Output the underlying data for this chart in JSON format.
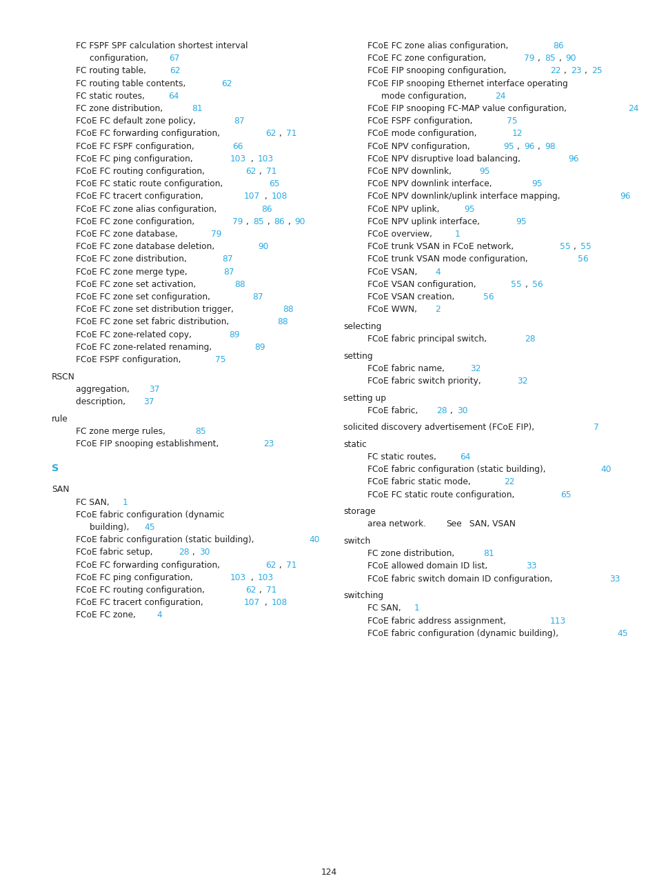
{
  "page_number": "124",
  "text_color": "#231f20",
  "link_color": "#29abe2",
  "background_color": "#ffffff",
  "left_entries": [
    {
      "indent": 1,
      "parts": [
        [
          "FC FSPF SPF calculation shortest interval",
          false
        ]
      ]
    },
    {
      "indent": 2,
      "parts": [
        [
          "configuration, ",
          false
        ],
        [
          "67",
          true
        ]
      ]
    },
    {
      "indent": 1,
      "parts": [
        [
          "FC routing table, ",
          false
        ],
        [
          "62",
          true
        ]
      ]
    },
    {
      "indent": 1,
      "parts": [
        [
          "FC routing table contents, ",
          false
        ],
        [
          "62",
          true
        ]
      ]
    },
    {
      "indent": 1,
      "parts": [
        [
          "FC static routes, ",
          false
        ],
        [
          "64",
          true
        ]
      ]
    },
    {
      "indent": 1,
      "parts": [
        [
          "FC zone distribution, ",
          false
        ],
        [
          "81",
          true
        ]
      ]
    },
    {
      "indent": 1,
      "parts": [
        [
          "FCoE FC default zone policy, ",
          false
        ],
        [
          "87",
          true
        ]
      ]
    },
    {
      "indent": 1,
      "parts": [
        [
          "FCoE FC forwarding configuration, ",
          false
        ],
        [
          "62",
          true
        ],
        [
          ", ",
          false
        ],
        [
          "71",
          true
        ]
      ]
    },
    {
      "indent": 1,
      "parts": [
        [
          "FCoE FC FSPF configuration, ",
          false
        ],
        [
          "66",
          true
        ]
      ]
    },
    {
      "indent": 1,
      "parts": [
        [
          "FCoE FC ping configuration, ",
          false
        ],
        [
          "103",
          true
        ],
        [
          ", ",
          false
        ],
        [
          "103",
          true
        ]
      ]
    },
    {
      "indent": 1,
      "parts": [
        [
          "FCoE FC routing configuration, ",
          false
        ],
        [
          "62",
          true
        ],
        [
          ", ",
          false
        ],
        [
          "71",
          true
        ]
      ]
    },
    {
      "indent": 1,
      "parts": [
        [
          "FCoE FC static route configuration, ",
          false
        ],
        [
          "65",
          true
        ]
      ]
    },
    {
      "indent": 1,
      "parts": [
        [
          "FCoE FC tracert configuration, ",
          false
        ],
        [
          "107",
          true
        ],
        [
          ", ",
          false
        ],
        [
          "108",
          true
        ]
      ]
    },
    {
      "indent": 1,
      "parts": [
        [
          "FCoE FC zone alias configuration, ",
          false
        ],
        [
          "86",
          true
        ]
      ]
    },
    {
      "indent": 1,
      "parts": [
        [
          "FCoE FC zone configuration, ",
          false
        ],
        [
          "79",
          true
        ],
        [
          ", ",
          false
        ],
        [
          "85",
          true
        ],
        [
          ", ",
          false
        ],
        [
          "86",
          true
        ],
        [
          ", ",
          false
        ],
        [
          "90",
          true
        ]
      ]
    },
    {
      "indent": 1,
      "parts": [
        [
          "FCoE FC zone database, ",
          false
        ],
        [
          "79",
          true
        ]
      ]
    },
    {
      "indent": 1,
      "parts": [
        [
          "FCoE FC zone database deletion, ",
          false
        ],
        [
          "90",
          true
        ]
      ]
    },
    {
      "indent": 1,
      "parts": [
        [
          "FCoE FC zone distribution, ",
          false
        ],
        [
          "87",
          true
        ]
      ]
    },
    {
      "indent": 1,
      "parts": [
        [
          "FCoE FC zone merge type, ",
          false
        ],
        [
          "87",
          true
        ]
      ]
    },
    {
      "indent": 1,
      "parts": [
        [
          "FCoE FC zone set activation, ",
          false
        ],
        [
          "88",
          true
        ]
      ]
    },
    {
      "indent": 1,
      "parts": [
        [
          "FCoE FC zone set configuration, ",
          false
        ],
        [
          "87",
          true
        ]
      ]
    },
    {
      "indent": 1,
      "parts": [
        [
          "FCoE FC zone set distribution trigger, ",
          false
        ],
        [
          "88",
          true
        ]
      ]
    },
    {
      "indent": 1,
      "parts": [
        [
          "FCoE FC zone set fabric distribution, ",
          false
        ],
        [
          "88",
          true
        ]
      ]
    },
    {
      "indent": 1,
      "parts": [
        [
          "FCoE FC zone-related copy, ",
          false
        ],
        [
          "89",
          true
        ]
      ]
    },
    {
      "indent": 1,
      "parts": [
        [
          "FCoE FC zone-related renaming, ",
          false
        ],
        [
          "89",
          true
        ]
      ]
    },
    {
      "indent": 1,
      "parts": [
        [
          "FCoE FSPF configuration, ",
          false
        ],
        [
          "75",
          true
        ]
      ]
    },
    {
      "indent": 0,
      "parts": [
        [
          "RSCN",
          false
        ]
      ]
    },
    {
      "indent": 1,
      "parts": [
        [
          "aggregation, ",
          false
        ],
        [
          "37",
          true
        ]
      ]
    },
    {
      "indent": 1,
      "parts": [
        [
          "description, ",
          false
        ],
        [
          "37",
          true
        ]
      ]
    },
    {
      "indent": 0,
      "parts": [
        [
          "rule",
          false
        ]
      ]
    },
    {
      "indent": 1,
      "parts": [
        [
          "FC zone merge rules, ",
          false
        ],
        [
          "85",
          true
        ]
      ]
    },
    {
      "indent": 1,
      "parts": [
        [
          "FCoE FIP snooping establishment, ",
          false
        ],
        [
          "23",
          true
        ]
      ]
    },
    {
      "indent": -1,
      "parts": []
    },
    {
      "indent": -2,
      "parts": [
        [
          "S",
          true
        ]
      ]
    },
    {
      "indent": 0,
      "parts": [
        [
          "SAN",
          false
        ]
      ]
    },
    {
      "indent": 1,
      "parts": [
        [
          "FC SAN, ",
          false
        ],
        [
          "1",
          true
        ]
      ]
    },
    {
      "indent": 1,
      "parts": [
        [
          "FCoE fabric configuration (dynamic",
          false
        ]
      ]
    },
    {
      "indent": 2,
      "parts": [
        [
          "building), ",
          false
        ],
        [
          "45",
          true
        ]
      ]
    },
    {
      "indent": 1,
      "parts": [
        [
          "FCoE fabric configuration (static building), ",
          false
        ],
        [
          "40",
          true
        ]
      ]
    },
    {
      "indent": 1,
      "parts": [
        [
          "FCoE fabric setup, ",
          false
        ],
        [
          "28",
          true
        ],
        [
          ", ",
          false
        ],
        [
          "30",
          true
        ]
      ]
    },
    {
      "indent": 1,
      "parts": [
        [
          "FCoE FC forwarding configuration, ",
          false
        ],
        [
          "62",
          true
        ],
        [
          ", ",
          false
        ],
        [
          "71",
          true
        ]
      ]
    },
    {
      "indent": 1,
      "parts": [
        [
          "FCoE FC ping configuration, ",
          false
        ],
        [
          "103",
          true
        ],
        [
          ", ",
          false
        ],
        [
          "103",
          true
        ]
      ]
    },
    {
      "indent": 1,
      "parts": [
        [
          "FCoE FC routing configuration, ",
          false
        ],
        [
          "62",
          true
        ],
        [
          ", ",
          false
        ],
        [
          "71",
          true
        ]
      ]
    },
    {
      "indent": 1,
      "parts": [
        [
          "FCoE FC tracert configuration, ",
          false
        ],
        [
          "107",
          true
        ],
        [
          ", ",
          false
        ],
        [
          "108",
          true
        ]
      ]
    },
    {
      "indent": 1,
      "parts": [
        [
          "FCoE FC zone, ",
          false
        ],
        [
          "4",
          true
        ]
      ]
    }
  ],
  "right_entries": [
    {
      "indent": 1,
      "parts": [
        [
          "FCoE FC zone alias configuration, ",
          false
        ],
        [
          "86",
          true
        ]
      ]
    },
    {
      "indent": 1,
      "parts": [
        [
          "FCoE FC zone configuration, ",
          false
        ],
        [
          "79",
          true
        ],
        [
          ", ",
          false
        ],
        [
          "85",
          true
        ],
        [
          ", ",
          false
        ],
        [
          "90",
          true
        ]
      ]
    },
    {
      "indent": 1,
      "parts": [
        [
          "FCoE FIP snooping configuration, ",
          false
        ],
        [
          "22",
          true
        ],
        [
          ", ",
          false
        ],
        [
          "23",
          true
        ],
        [
          ", ",
          false
        ],
        [
          "25",
          true
        ]
      ]
    },
    {
      "indent": 1,
      "parts": [
        [
          "FCoE FIP snooping Ethernet interface operating",
          false
        ]
      ]
    },
    {
      "indent": 2,
      "parts": [
        [
          "mode configuration, ",
          false
        ],
        [
          "24",
          true
        ]
      ]
    },
    {
      "indent": 1,
      "parts": [
        [
          "FCoE FIP snooping FC-MAP value configuration, ",
          false
        ],
        [
          "24",
          true
        ]
      ]
    },
    {
      "indent": 1,
      "parts": [
        [
          "FCoE FSPF configuration, ",
          false
        ],
        [
          "75",
          true
        ]
      ]
    },
    {
      "indent": 1,
      "parts": [
        [
          "FCoE mode configuration, ",
          false
        ],
        [
          "12",
          true
        ]
      ]
    },
    {
      "indent": 1,
      "parts": [
        [
          "FCoE NPV configuration, ",
          false
        ],
        [
          "95",
          true
        ],
        [
          ", ",
          false
        ],
        [
          "96",
          true
        ],
        [
          ", ",
          false
        ],
        [
          "98",
          true
        ]
      ]
    },
    {
      "indent": 1,
      "parts": [
        [
          "FCoE NPV disruptive load balancing, ",
          false
        ],
        [
          "96",
          true
        ]
      ]
    },
    {
      "indent": 1,
      "parts": [
        [
          "FCoE NPV downlink, ",
          false
        ],
        [
          "95",
          true
        ]
      ]
    },
    {
      "indent": 1,
      "parts": [
        [
          "FCoE NPV downlink interface, ",
          false
        ],
        [
          "95",
          true
        ]
      ]
    },
    {
      "indent": 1,
      "parts": [
        [
          "FCoE NPV downlink/uplink interface mapping, ",
          false
        ],
        [
          "96",
          true
        ]
      ]
    },
    {
      "indent": 1,
      "parts": [
        [
          "FCoE NPV uplink, ",
          false
        ],
        [
          "95",
          true
        ]
      ]
    },
    {
      "indent": 1,
      "parts": [
        [
          "FCoE NPV uplink interface, ",
          false
        ],
        [
          "95",
          true
        ]
      ]
    },
    {
      "indent": 1,
      "parts": [
        [
          "FCoE overview, ",
          false
        ],
        [
          "1",
          true
        ]
      ]
    },
    {
      "indent": 1,
      "parts": [
        [
          "FCoE trunk VSAN in FCoE network, ",
          false
        ],
        [
          "55",
          true
        ],
        [
          ", ",
          false
        ],
        [
          "55",
          true
        ]
      ]
    },
    {
      "indent": 1,
      "parts": [
        [
          "FCoE trunk VSAN mode configuration, ",
          false
        ],
        [
          "56",
          true
        ]
      ]
    },
    {
      "indent": 1,
      "parts": [
        [
          "FCoE VSAN, ",
          false
        ],
        [
          "4",
          true
        ]
      ]
    },
    {
      "indent": 1,
      "parts": [
        [
          "FCoE VSAN configuration, ",
          false
        ],
        [
          "55",
          true
        ],
        [
          ", ",
          false
        ],
        [
          "56",
          true
        ]
      ]
    },
    {
      "indent": 1,
      "parts": [
        [
          "FCoE VSAN creation, ",
          false
        ],
        [
          "56",
          true
        ]
      ]
    },
    {
      "indent": 1,
      "parts": [
        [
          "FCoE WWN, ",
          false
        ],
        [
          "2",
          true
        ]
      ]
    },
    {
      "indent": 0,
      "parts": [
        [
          "selecting",
          false
        ]
      ]
    },
    {
      "indent": 1,
      "parts": [
        [
          "FCoE fabric principal switch, ",
          false
        ],
        [
          "28",
          true
        ]
      ]
    },
    {
      "indent": 0,
      "parts": [
        [
          "setting",
          false
        ]
      ]
    },
    {
      "indent": 1,
      "parts": [
        [
          "FCoE fabric name, ",
          false
        ],
        [
          "32",
          true
        ]
      ]
    },
    {
      "indent": 1,
      "parts": [
        [
          "FCoE fabric switch priority, ",
          false
        ],
        [
          "32",
          true
        ]
      ]
    },
    {
      "indent": 0,
      "parts": [
        [
          "setting up",
          false
        ]
      ]
    },
    {
      "indent": 1,
      "parts": [
        [
          "FCoE fabric, ",
          false
        ],
        [
          "28",
          true
        ],
        [
          ", ",
          false
        ],
        [
          "30",
          true
        ]
      ]
    },
    {
      "indent": 0,
      "parts": [
        [
          "solicited discovery advertisement (FCoE FIP), ",
          false
        ],
        [
          "7",
          true
        ]
      ]
    },
    {
      "indent": 0,
      "parts": [
        [
          "static",
          false
        ]
      ]
    },
    {
      "indent": 1,
      "parts": [
        [
          "FC static routes, ",
          false
        ],
        [
          "64",
          true
        ]
      ]
    },
    {
      "indent": 1,
      "parts": [
        [
          "FCoE fabric configuration (static building), ",
          false
        ],
        [
          "40",
          true
        ]
      ]
    },
    {
      "indent": 1,
      "parts": [
        [
          "FCoE fabric static mode, ",
          false
        ],
        [
          "22",
          true
        ]
      ]
    },
    {
      "indent": 1,
      "parts": [
        [
          "FCoE FC static route configuration, ",
          false
        ],
        [
          "65",
          true
        ]
      ]
    },
    {
      "indent": 0,
      "parts": [
        [
          "storage",
          false
        ]
      ]
    },
    {
      "indent": 1,
      "parts": [
        [
          "area network. ",
          false
        ],
        [
          "See",
          false
        ],
        [
          " SAN, VSAN",
          false
        ]
      ]
    },
    {
      "indent": 0,
      "parts": [
        [
          "switch",
          false
        ]
      ]
    },
    {
      "indent": 1,
      "parts": [
        [
          "FC zone distribution, ",
          false
        ],
        [
          "81",
          true
        ]
      ]
    },
    {
      "indent": 1,
      "parts": [
        [
          "FCoE allowed domain ID list, ",
          false
        ],
        [
          "33",
          true
        ]
      ]
    },
    {
      "indent": 1,
      "parts": [
        [
          "FCoE fabric switch domain ID configuration, ",
          false
        ],
        [
          "33",
          true
        ]
      ]
    },
    {
      "indent": 0,
      "parts": [
        [
          "switching",
          false
        ]
      ]
    },
    {
      "indent": 1,
      "parts": [
        [
          "FC SAN, ",
          false
        ],
        [
          "1",
          true
        ]
      ]
    },
    {
      "indent": 1,
      "parts": [
        [
          "FCoE fabric address assignment, ",
          false
        ],
        [
          "113",
          true
        ]
      ]
    },
    {
      "indent": 1,
      "parts": [
        [
          "FCoE fabric configuration (dynamic building), ",
          false
        ],
        [
          "45",
          true
        ]
      ]
    }
  ]
}
